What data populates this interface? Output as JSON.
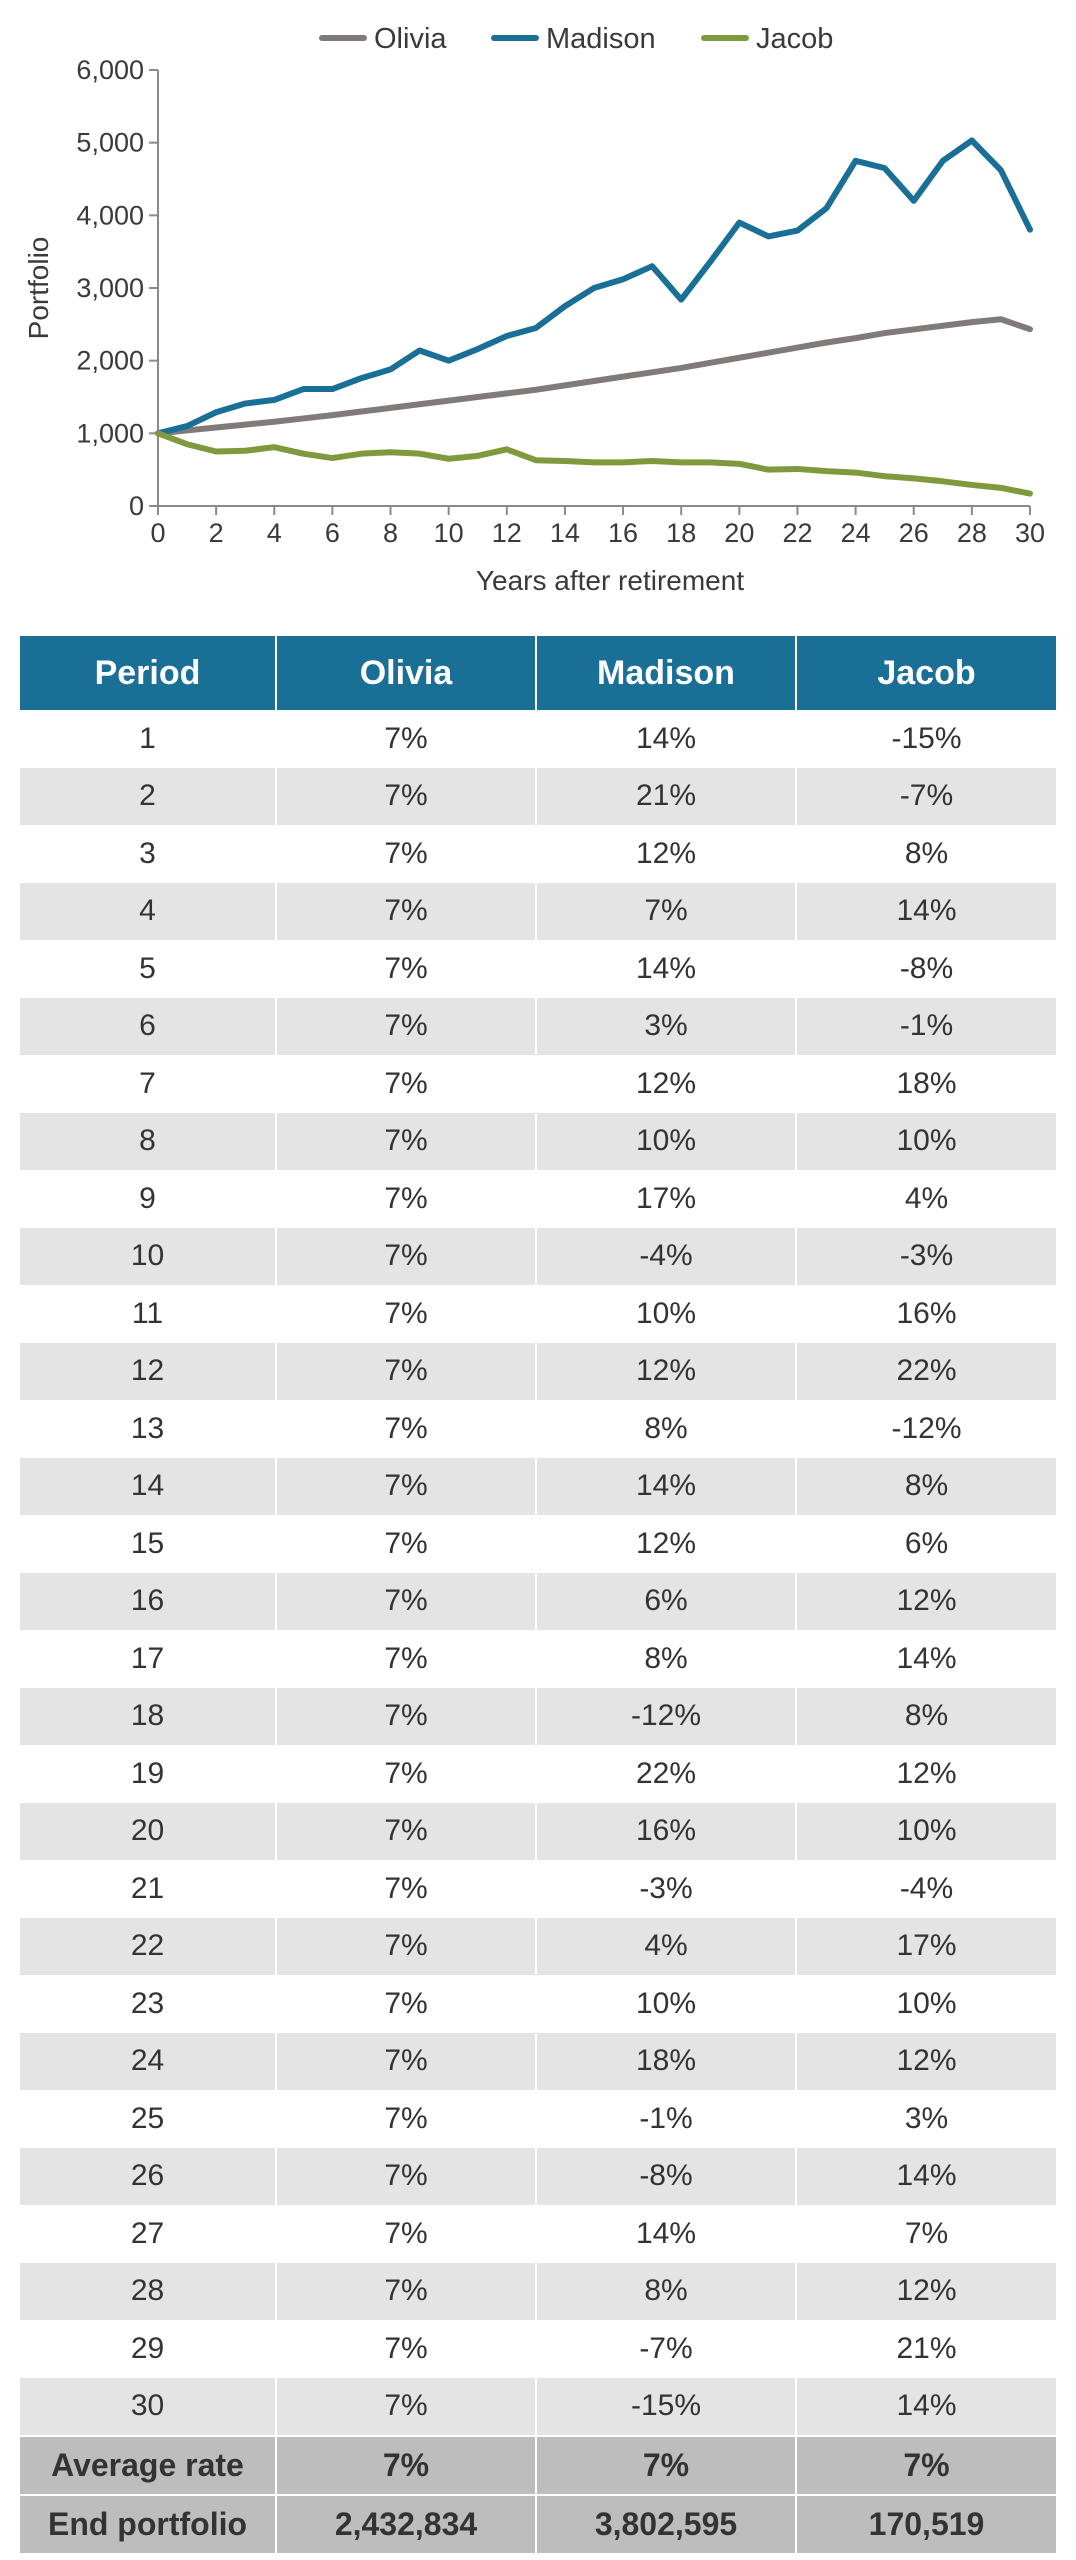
{
  "chart_data": {
    "type": "line",
    "xlabel": "Years after retirement",
    "ylabel": "Portfolio",
    "xlim": [
      0,
      30
    ],
    "ylim": [
      0,
      6000
    ],
    "xticks": [
      0,
      2,
      4,
      6,
      8,
      10,
      12,
      14,
      16,
      18,
      20,
      22,
      24,
      26,
      28,
      30
    ],
    "yticks": [
      0,
      1000,
      2000,
      3000,
      4000,
      5000,
      6000
    ],
    "ytick_labels": [
      "0",
      "1,000",
      "2,000",
      "3,000",
      "4,000",
      "5,000",
      "6,000"
    ],
    "legend_position": "top",
    "x": [
      0,
      1,
      2,
      3,
      4,
      5,
      6,
      7,
      8,
      9,
      10,
      11,
      12,
      13,
      14,
      15,
      16,
      17,
      18,
      19,
      20,
      21,
      22,
      23,
      24,
      25,
      26,
      27,
      28,
      29,
      30
    ],
    "series": [
      {
        "name": "Olivia",
        "color": "#807b78",
        "values": [
          1000,
          1040,
          1080,
          1120,
          1160,
          1205,
          1250,
          1300,
          1350,
          1400,
          1450,
          1500,
          1550,
          1600,
          1660,
          1720,
          1780,
          1840,
          1900,
          1970,
          2040,
          2110,
          2180,
          2250,
          2310,
          2380,
          2430,
          2480,
          2530,
          2570,
          2433
        ]
      },
      {
        "name": "Madison",
        "color": "#1a6f97",
        "values": [
          1000,
          1100,
          1290,
          1410,
          1460,
          1610,
          1610,
          1760,
          1880,
          2140,
          2000,
          2160,
          2340,
          2450,
          2750,
          3000,
          3120,
          3300,
          2840,
          3360,
          3900,
          3710,
          3790,
          4100,
          4750,
          4650,
          4200,
          4750,
          5030,
          4620,
          3803
        ]
      },
      {
        "name": "Jacob",
        "color": "#7f9a3d",
        "values": [
          1000,
          850,
          750,
          760,
          810,
          720,
          660,
          720,
          740,
          720,
          650,
          690,
          780,
          630,
          620,
          600,
          600,
          620,
          600,
          600,
          580,
          500,
          510,
          480,
          460,
          410,
          380,
          340,
          290,
          250,
          171
        ]
      }
    ]
  },
  "table": {
    "headers": [
      "Period",
      "Olivia",
      "Madison",
      "Jacob"
    ],
    "rows": [
      [
        "1",
        "7%",
        "14%",
        "-15%"
      ],
      [
        "2",
        "7%",
        "21%",
        "-7%"
      ],
      [
        "3",
        "7%",
        "12%",
        "8%"
      ],
      [
        "4",
        "7%",
        "7%",
        "14%"
      ],
      [
        "5",
        "7%",
        "14%",
        "-8%"
      ],
      [
        "6",
        "7%",
        "3%",
        "-1%"
      ],
      [
        "7",
        "7%",
        "12%",
        "18%"
      ],
      [
        "8",
        "7%",
        "10%",
        "10%"
      ],
      [
        "9",
        "7%",
        "17%",
        "4%"
      ],
      [
        "10",
        "7%",
        "-4%",
        "-3%"
      ],
      [
        "11",
        "7%",
        "10%",
        "16%"
      ],
      [
        "12",
        "7%",
        "12%",
        "22%"
      ],
      [
        "13",
        "7%",
        "8%",
        "-12%"
      ],
      [
        "14",
        "7%",
        "14%",
        "8%"
      ],
      [
        "15",
        "7%",
        "12%",
        "6%"
      ],
      [
        "16",
        "7%",
        "6%",
        "12%"
      ],
      [
        "17",
        "7%",
        "8%",
        "14%"
      ],
      [
        "18",
        "7%",
        "-12%",
        "8%"
      ],
      [
        "19",
        "7%",
        "22%",
        "12%"
      ],
      [
        "20",
        "7%",
        "16%",
        "10%"
      ],
      [
        "21",
        "7%",
        "-3%",
        "-4%"
      ],
      [
        "22",
        "7%",
        "4%",
        "17%"
      ],
      [
        "23",
        "7%",
        "10%",
        "10%"
      ],
      [
        "24",
        "7%",
        "18%",
        "12%"
      ],
      [
        "25",
        "7%",
        "-1%",
        "3%"
      ],
      [
        "26",
        "7%",
        "-8%",
        "14%"
      ],
      [
        "27",
        "7%",
        "14%",
        "7%"
      ],
      [
        "28",
        "7%",
        "8%",
        "12%"
      ],
      [
        "29",
        "7%",
        "-7%",
        "21%"
      ],
      [
        "30",
        "7%",
        "-15%",
        "14%"
      ]
    ],
    "footer": [
      [
        "Average rate",
        "7%",
        "7%",
        "7%"
      ],
      [
        "End portfolio",
        "2,432,834",
        "3,802,595",
        "170,519"
      ]
    ]
  }
}
